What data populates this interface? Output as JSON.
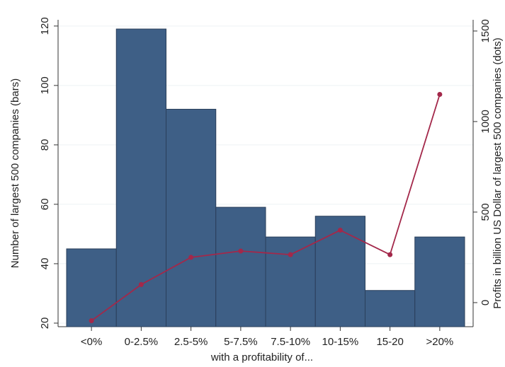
{
  "chart_data": {
    "type": "bar",
    "x_label": "with a profitability of...",
    "y_label": "Number of largest 500 companies (bars)",
    "y2_label": "Profits in billion US Dollar of largest 500 companies (dots)",
    "categories": [
      "<0%",
      "0-2.5%",
      "2.5-5%",
      "5-7.5%",
      "7.5-10%",
      "10-15%",
      "15-20",
      ">20%"
    ],
    "series": [
      {
        "type": "bar",
        "color": "#3e5f86",
        "values": [
          45,
          119,
          92,
          59,
          49,
          56,
          31,
          49
        ]
      },
      {
        "type": "line",
        "axis": "y2",
        "color": "#a3284a",
        "values": [
          -100,
          100,
          250,
          285,
          265,
          400,
          265,
          1150
        ]
      }
    ],
    "ylim": [
      18.8,
      122.1
    ],
    "yticks": [
      20,
      40,
      60,
      80,
      100,
      120
    ],
    "y2lim": [
      -133,
      1562
    ],
    "y2ticks": [
      0,
      500,
      1000,
      1500
    ],
    "grid": true
  }
}
